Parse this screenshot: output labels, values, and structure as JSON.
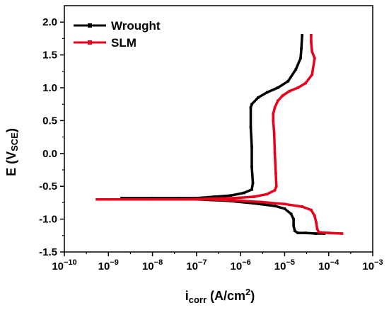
{
  "chart_data": {
    "type": "line",
    "x_scale": "log",
    "xlim": [
      1e-10,
      0.001
    ],
    "ylim": [
      -1.5,
      2.25
    ],
    "x_ticks": [
      1e-10,
      1e-09,
      1e-08,
      1e-07,
      1e-06,
      1e-05,
      0.0001,
      0.001
    ],
    "x_tick_labels": [
      {
        "base": "10",
        "exp": "−10"
      },
      {
        "base": "10",
        "exp": "−9"
      },
      {
        "base": "10",
        "exp": "−8"
      },
      {
        "base": "10",
        "exp": "−7"
      },
      {
        "base": "10",
        "exp": "−6"
      },
      {
        "base": "10",
        "exp": "−5"
      },
      {
        "base": "10",
        "exp": "−4"
      },
      {
        "base": "10",
        "exp": "−3"
      }
    ],
    "y_ticks": [
      -1.5,
      -1.0,
      -0.5,
      0.0,
      0.5,
      1.0,
      1.5,
      2.0
    ],
    "y_tick_labels": [
      "-1.5",
      "-1.0",
      "-0.5",
      "0.0",
      "0.5",
      "1.0",
      "1.5",
      "2.0"
    ],
    "ylabel": {
      "main": "E (V",
      "sub": "SCE",
      "end": ")"
    },
    "xlabel": {
      "main": "i",
      "sub": "corr",
      "unit": " (A/cm",
      "sup": "2",
      "end": ")"
    },
    "legend_position": "top-left",
    "grid": false,
    "series": [
      {
        "name": "Wrought",
        "color": "#000000",
        "points": [
          [
            2.5e-05,
            1.8
          ],
          [
            2.4e-05,
            1.6
          ],
          [
            2.3e-05,
            1.45
          ],
          [
            1.8e-05,
            1.28
          ],
          [
            1.2e-05,
            1.1
          ],
          [
            7e-06,
            1.0
          ],
          [
            4e-06,
            0.93
          ],
          [
            2.5e-06,
            0.85
          ],
          [
            1.8e-06,
            0.75
          ],
          [
            1.7e-06,
            0.7
          ],
          [
            1.7e-06,
            0.4
          ],
          [
            1.8e-06,
            0.1
          ],
          [
            1.8e-06,
            -0.2
          ],
          [
            1.9e-06,
            -0.45
          ],
          [
            1.8e-06,
            -0.55
          ],
          [
            1.2e-06,
            -0.6
          ],
          [
            6e-07,
            -0.64
          ],
          [
            2.5e-07,
            -0.66
          ],
          [
            1e-07,
            -0.68
          ],
          [
            4e-08,
            -0.68
          ],
          [
            1e-08,
            -0.68
          ],
          [
            2e-09,
            -0.68
          ],
          [
            1e-07,
            -0.7
          ],
          [
            5e-07,
            -0.72
          ],
          [
            2e-06,
            -0.76
          ],
          [
            6e-06,
            -0.8
          ],
          [
            1e-05,
            -0.84
          ],
          [
            1.4e-05,
            -0.92
          ],
          [
            1.6e-05,
            -1.0
          ],
          [
            1.6e-05,
            -1.1
          ],
          [
            1.7e-05,
            -1.18
          ],
          [
            2e-05,
            -1.21
          ],
          [
            3e-05,
            -1.21
          ],
          [
            5e-05,
            -1.22
          ],
          [
            8e-05,
            -1.22
          ]
        ]
      },
      {
        "name": "SLM",
        "color": "#e8001c",
        "points": [
          [
            4e-05,
            1.8
          ],
          [
            4e-05,
            1.7
          ],
          [
            4.2e-05,
            1.55
          ],
          [
            4.8e-05,
            1.45
          ],
          [
            4.2e-05,
            1.2
          ],
          [
            3e-05,
            1.07
          ],
          [
            2e-05,
            1.0
          ],
          [
            1.3e-05,
            0.95
          ],
          [
            9e-06,
            0.88
          ],
          [
            7e-06,
            0.8
          ],
          [
            6e-06,
            0.7
          ],
          [
            5.5e-06,
            0.6
          ],
          [
            5.5e-06,
            0.5
          ],
          [
            5.8e-06,
            0.3
          ],
          [
            6e-06,
            0.0
          ],
          [
            6.3e-06,
            -0.3
          ],
          [
            6.5e-06,
            -0.5
          ],
          [
            6e-06,
            -0.56
          ],
          [
            4e-06,
            -0.62
          ],
          [
            2e-06,
            -0.66
          ],
          [
            7e-07,
            -0.68
          ],
          [
            2e-07,
            -0.69
          ],
          [
            5e-08,
            -0.7
          ],
          [
            1e-08,
            -0.7
          ],
          [
            1e-09,
            -0.7
          ],
          [
            5.5e-10,
            -0.7
          ],
          [
            2e-07,
            -0.7
          ],
          [
            1e-06,
            -0.72
          ],
          [
            3e-06,
            -0.74
          ],
          [
            1e-05,
            -0.77
          ],
          [
            2.5e-05,
            -0.81
          ],
          [
            4e-05,
            -0.86
          ],
          [
            4.8e-05,
            -0.95
          ],
          [
            5.2e-05,
            -1.05
          ],
          [
            5.5e-05,
            -1.15
          ],
          [
            6e-05,
            -1.2
          ],
          [
            0.0001,
            -1.21
          ],
          [
            0.0002,
            -1.22
          ]
        ]
      }
    ]
  }
}
